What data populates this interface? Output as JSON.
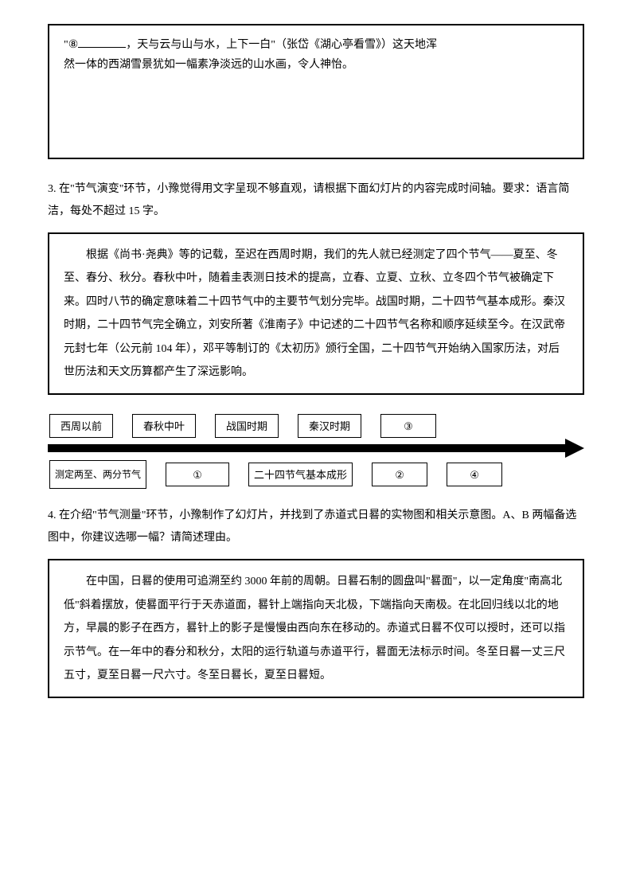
{
  "box1": {
    "line1a": "\"⑧",
    "line1b": "，天与云与山与水，上下一白\"（张岱《湖心亭看雪》）这天地浑",
    "line2": "然一体的西湖雪景犹如一幅素净淡远的山水画，令人神怡。"
  },
  "q3": {
    "text": "3. 在\"节气演变\"环节，小豫觉得用文字呈现不够直观，请根据下面幻灯片的内容完成时间轴。要求：语言简洁，每处不超过 15 字。"
  },
  "passage3": {
    "p": "　　根据《尚书·尧典》等的记载，至迟在西周时期，我们的先人就已经测定了四个节气——夏至、冬至、春分、秋分。春秋中叶，随着圭表测日技术的提高，立春、立夏、立秋、立冬四个节气被确定下来。四时八节的确定意味着二十四节气中的主要节气划分完毕。战国时期，二十四节气基本成形。秦汉时期，二十四节气完全确立，刘安所著《淮南子》中记述的二十四节气名称和顺序延续至今。在汉武帝元封七年（公元前 104 年），邓平等制订的《太初历》颁行全国，二十四节气开始纳入国家历法，对后世历法和天文历算都产生了深远影响。"
  },
  "timeline": {
    "top": [
      "西周以前",
      "春秋中叶",
      "战国时期",
      "秦汉时期",
      "③"
    ],
    "bottom": [
      "测定两至、两分节气",
      "①",
      "二十四节气基本成形",
      "②",
      "④"
    ]
  },
  "q4": {
    "text": "4. 在介绍\"节气测量\"环节，小豫制作了幻灯片，并找到了赤道式日晷的实物图和相关示意图。A、B 两幅备选图中，你建议选哪一幅？请简述理由。"
  },
  "passage4": {
    "p": "　　在中国，日晷的使用可追溯至约 3000 年前的周朝。日晷石制的圆盘叫\"晷面\"，以一定角度\"南高北低\"斜着摆放，使晷面平行于天赤道面，晷针上端指向天北极，下端指向天南极。在北回归线以北的地方，早晨的影子在西方，晷针上的影子是慢慢由西向东在移动的。赤道式日晷不仅可以授时，还可以指示节气。在一年中的春分和秋分，太阳的运行轨道与赤道平行，晷面无法标示时间。冬至日晷一丈三尺五寸，夏至日晷一尺六寸。冬至日晷长，夏至日晷短。"
  },
  "style": {
    "page_bg": "#ffffff",
    "text_color": "#000000",
    "border_color": "#000000",
    "body_font": "SimSun",
    "passage_font": "KaiTi",
    "body_fontsize": 14,
    "passage_fontsize": 14
  }
}
